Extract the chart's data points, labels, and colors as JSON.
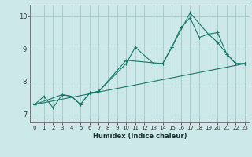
{
  "xlabel": "Humidex (Indice chaleur)",
  "background_color": "#cce8e8",
  "grid_color": "#a8cccc",
  "line_color": "#1a7a6a",
  "xlim": [
    -0.5,
    23.5
  ],
  "ylim": [
    6.75,
    10.35
  ],
  "yticks": [
    7,
    8,
    9,
    10
  ],
  "xticks": [
    0,
    1,
    2,
    3,
    4,
    5,
    6,
    7,
    8,
    9,
    10,
    11,
    12,
    13,
    14,
    15,
    16,
    17,
    18,
    19,
    20,
    21,
    22,
    23
  ],
  "lines": [
    {
      "x": [
        0,
        1,
        2,
        3,
        4,
        5,
        6,
        7,
        10,
        11,
        13,
        14,
        15,
        16,
        17,
        18,
        19,
        20,
        21,
        22,
        23
      ],
      "y": [
        7.3,
        7.55,
        7.2,
        7.6,
        7.55,
        7.3,
        7.65,
        7.7,
        8.55,
        9.05,
        8.55,
        8.55,
        9.05,
        9.65,
        9.95,
        9.35,
        9.45,
        9.2,
        8.85,
        8.55,
        8.55
      ]
    },
    {
      "x": [
        0,
        3,
        4,
        5,
        6,
        7,
        10,
        14,
        15,
        17,
        19,
        20,
        21,
        22,
        23
      ],
      "y": [
        7.3,
        7.6,
        7.55,
        7.3,
        7.65,
        7.7,
        8.65,
        8.55,
        9.05,
        10.1,
        9.45,
        9.5,
        8.85,
        8.55,
        8.55
      ]
    },
    {
      "x": [
        0,
        23
      ],
      "y": [
        7.3,
        8.55
      ]
    }
  ]
}
